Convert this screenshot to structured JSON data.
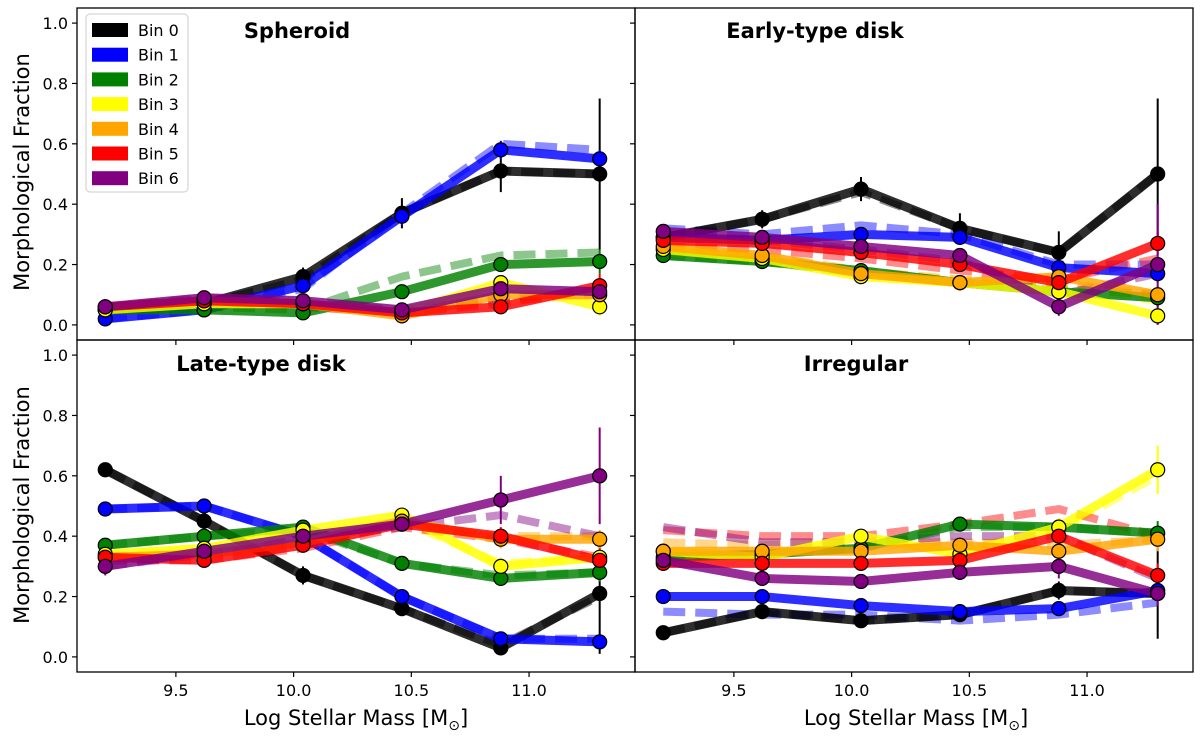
{
  "figure": {
    "ylabel": "Morphological Fraction",
    "xlabel": "Log Stellar Mass [M",
    "xlabel_sub": "⊙",
    "xlabel_end": "]"
  },
  "legend": {
    "location": "upper-left of top-left panel",
    "entries": [
      {
        "label": "Bin 0",
        "color": "#000000"
      },
      {
        "label": "Bin 1",
        "color": "#0000ff"
      },
      {
        "label": "Bin 2",
        "color": "#008000"
      },
      {
        "label": "Bin 3",
        "color": "#ffff00"
      },
      {
        "label": "Bin 4",
        "color": "#ffa500"
      },
      {
        "label": "Bin 5",
        "color": "#ff0000"
      },
      {
        "label": "Bin 6",
        "color": "#800080"
      }
    ]
  },
  "chart_data": [
    {
      "type": "line",
      "title": "Spheroid",
      "xlabel": "Log Stellar Mass [M⊙]",
      "ylabel": "Morphological Fraction",
      "xlim": [
        9.08,
        11.45
      ],
      "ylim": [
        -0.05,
        1.05
      ],
      "xticks": [
        9.5,
        10.0,
        10.5,
        11.0
      ],
      "xtick_labels": [
        "9.5",
        "10.0",
        "10.5",
        "11.0"
      ],
      "yticks": [
        0.0,
        0.2,
        0.4,
        0.6,
        0.8,
        1.0
      ],
      "ytick_labels": [
        "0.0",
        "0.2",
        "0.4",
        "0.6",
        "0.8",
        "1.0"
      ],
      "x": [
        9.2,
        9.62,
        10.04,
        10.46,
        10.88,
        11.3
      ],
      "series": [
        {
          "name": "Bin 0",
          "color": "#000000",
          "values": [
            0.05,
            0.07,
            0.16,
            0.37,
            0.51,
            0.5
          ],
          "model": [
            0.05,
            0.07,
            0.15,
            0.37,
            0.51,
            0.5
          ],
          "err": [
            0.01,
            0.01,
            0.03,
            0.05,
            0.07,
            0.25
          ]
        },
        {
          "name": "Bin 1",
          "color": "#0000ff",
          "values": [
            0.02,
            0.05,
            0.13,
            0.36,
            0.58,
            0.55
          ],
          "model": [
            0.02,
            0.05,
            0.12,
            0.37,
            0.6,
            0.58
          ],
          "err": [
            0.01,
            0.01,
            0.02,
            0.03,
            0.03,
            0.03
          ]
        },
        {
          "name": "Bin 2",
          "color": "#008000",
          "values": [
            0.05,
            0.05,
            0.04,
            0.11,
            0.2,
            0.21
          ],
          "model": [
            0.05,
            0.06,
            0.05,
            0.16,
            0.23,
            0.24
          ],
          "err": [
            0.01,
            0.01,
            0.01,
            0.02,
            0.02,
            0.04
          ]
        },
        {
          "name": "Bin 3",
          "color": "#ffff00",
          "values": [
            0.05,
            0.07,
            0.07,
            0.04,
            0.14,
            0.06
          ],
          "model": [
            0.05,
            0.07,
            0.06,
            0.05,
            0.1,
            0.1
          ],
          "err": [
            0.01,
            0.01,
            0.01,
            0.01,
            0.02,
            0.03
          ]
        },
        {
          "name": "Bin 4",
          "color": "#ffa500",
          "values": [
            0.06,
            0.08,
            0.07,
            0.03,
            0.1,
            0.1
          ],
          "model": [
            0.06,
            0.08,
            0.06,
            0.04,
            0.08,
            0.1
          ],
          "err": [
            0.01,
            0.01,
            0.01,
            0.01,
            0.02,
            0.03
          ]
        },
        {
          "name": "Bin 5",
          "color": "#ff0000",
          "values": [
            0.06,
            0.08,
            0.07,
            0.04,
            0.06,
            0.13
          ],
          "model": [
            0.06,
            0.08,
            0.06,
            0.04,
            0.07,
            0.12
          ],
          "err": [
            0.01,
            0.01,
            0.01,
            0.01,
            0.02,
            0.04
          ]
        },
        {
          "name": "Bin 6",
          "color": "#800080",
          "values": [
            0.06,
            0.09,
            0.08,
            0.05,
            0.12,
            0.11
          ],
          "model": [
            0.06,
            0.09,
            0.07,
            0.05,
            0.09,
            0.11
          ],
          "err": [
            0.01,
            0.01,
            0.01,
            0.01,
            0.03,
            0.04
          ]
        }
      ]
    },
    {
      "type": "line",
      "title": "Early-type disk",
      "xlabel": "Log Stellar Mass [M⊙]",
      "ylabel": "",
      "xlim": [
        9.08,
        11.45
      ],
      "ylim": [
        -0.05,
        1.05
      ],
      "xticks": [
        9.5,
        10.0,
        10.5,
        11.0
      ],
      "xtick_labels": [
        "9.5",
        "10.0",
        "10.5",
        "11.0"
      ],
      "yticks": [
        0.0,
        0.2,
        0.4,
        0.6,
        0.8,
        1.0
      ],
      "ytick_labels": [
        "",
        "",
        "",
        "",
        "",
        ""
      ],
      "x": [
        9.2,
        9.62,
        10.04,
        10.46,
        10.88,
        11.3
      ],
      "series": [
        {
          "name": "Bin 0",
          "color": "#000000",
          "values": [
            0.29,
            0.35,
            0.45,
            0.32,
            0.24,
            0.5
          ],
          "model": [
            0.29,
            0.35,
            0.44,
            0.32,
            0.24,
            0.5
          ],
          "err": [
            0.02,
            0.03,
            0.04,
            0.05,
            0.07,
            0.25
          ]
        },
        {
          "name": "Bin 1",
          "color": "#0000ff",
          "values": [
            0.29,
            0.28,
            0.3,
            0.29,
            0.19,
            0.17
          ],
          "model": [
            0.32,
            0.3,
            0.33,
            0.3,
            0.2,
            0.2
          ],
          "err": [
            0.01,
            0.01,
            0.02,
            0.02,
            0.02,
            0.03
          ]
        },
        {
          "name": "Bin 2",
          "color": "#008000",
          "values": [
            0.23,
            0.21,
            0.18,
            0.14,
            0.11,
            0.09
          ],
          "model": [
            0.23,
            0.21,
            0.17,
            0.14,
            0.12,
            0.1
          ],
          "err": [
            0.01,
            0.01,
            0.01,
            0.02,
            0.02,
            0.03
          ]
        },
        {
          "name": "Bin 3",
          "color": "#ffff00",
          "values": [
            0.25,
            0.22,
            0.16,
            0.14,
            0.11,
            0.03
          ],
          "model": [
            0.24,
            0.22,
            0.17,
            0.15,
            0.13,
            0.08
          ],
          "err": [
            0.01,
            0.01,
            0.01,
            0.01,
            0.02,
            0.03
          ]
        },
        {
          "name": "Bin 4",
          "color": "#ffa500",
          "values": [
            0.26,
            0.23,
            0.17,
            0.14,
            0.16,
            0.1
          ],
          "model": [
            0.25,
            0.23,
            0.18,
            0.15,
            0.14,
            0.1
          ],
          "err": [
            0.01,
            0.01,
            0.01,
            0.01,
            0.02,
            0.03
          ]
        },
        {
          "name": "Bin 5",
          "color": "#ff0000",
          "values": [
            0.28,
            0.27,
            0.24,
            0.2,
            0.14,
            0.27
          ],
          "model": [
            0.26,
            0.25,
            0.22,
            0.18,
            0.15,
            0.22
          ],
          "err": [
            0.01,
            0.01,
            0.01,
            0.02,
            0.02,
            0.04
          ]
        },
        {
          "name": "Bin 6",
          "color": "#800080",
          "values": [
            0.31,
            0.29,
            0.26,
            0.23,
            0.06,
            0.2
          ],
          "model": [
            0.3,
            0.28,
            0.25,
            0.21,
            0.1,
            0.17
          ],
          "err": [
            0.02,
            0.02,
            0.02,
            0.02,
            0.03,
            0.2
          ]
        }
      ]
    },
    {
      "type": "line",
      "title": "Late-type disk",
      "xlabel": "Log Stellar Mass [M⊙]",
      "ylabel": "Morphological Fraction",
      "xlim": [
        9.08,
        11.45
      ],
      "ylim": [
        -0.05,
        1.05
      ],
      "xticks": [
        9.5,
        10.0,
        10.5,
        11.0
      ],
      "xtick_labels": [
        "9.5",
        "10.0",
        "10.5",
        "11.0"
      ],
      "yticks": [
        0.0,
        0.2,
        0.4,
        0.6,
        0.8,
        1.0
      ],
      "ytick_labels": [
        "0.0",
        "0.2",
        "0.4",
        "0.6",
        "0.8",
        "1.0"
      ],
      "x": [
        9.2,
        9.62,
        10.04,
        10.46,
        10.88,
        11.3
      ],
      "series": [
        {
          "name": "Bin 0",
          "color": "#000000",
          "values": [
            0.62,
            0.45,
            0.27,
            0.16,
            0.03,
            0.21
          ],
          "model": [
            0.62,
            0.45,
            0.27,
            0.16,
            0.04,
            0.2
          ],
          "err": [
            0.02,
            0.03,
            0.03,
            0.02,
            0.02,
            0.2
          ]
        },
        {
          "name": "Bin 1",
          "color": "#0000ff",
          "values": [
            0.49,
            0.5,
            0.4,
            0.2,
            0.06,
            0.05
          ],
          "model": [
            0.49,
            0.5,
            0.4,
            0.2,
            0.06,
            0.06
          ],
          "err": [
            0.01,
            0.01,
            0.02,
            0.02,
            0.01,
            0.01
          ]
        },
        {
          "name": "Bin 2",
          "color": "#008000",
          "values": [
            0.37,
            0.4,
            0.43,
            0.31,
            0.26,
            0.28
          ],
          "model": [
            0.37,
            0.4,
            0.42,
            0.31,
            0.27,
            0.28
          ],
          "err": [
            0.01,
            0.01,
            0.02,
            0.02,
            0.02,
            0.03
          ]
        },
        {
          "name": "Bin 3",
          "color": "#ffff00",
          "values": [
            0.34,
            0.36,
            0.42,
            0.47,
            0.3,
            0.33
          ],
          "model": [
            0.34,
            0.36,
            0.41,
            0.45,
            0.31,
            0.33
          ],
          "err": [
            0.01,
            0.01,
            0.02,
            0.02,
            0.03,
            0.03
          ]
        },
        {
          "name": "Bin 4",
          "color": "#ffa500",
          "values": [
            0.33,
            0.34,
            0.38,
            0.45,
            0.39,
            0.39
          ],
          "model": [
            0.33,
            0.34,
            0.38,
            0.44,
            0.4,
            0.4
          ],
          "err": [
            0.01,
            0.01,
            0.02,
            0.02,
            0.03,
            0.03
          ]
        },
        {
          "name": "Bin 5",
          "color": "#ff0000",
          "values": [
            0.33,
            0.32,
            0.37,
            0.44,
            0.4,
            0.32
          ],
          "model": [
            0.32,
            0.32,
            0.36,
            0.43,
            0.39,
            0.33
          ],
          "err": [
            0.01,
            0.01,
            0.02,
            0.02,
            0.03,
            0.04
          ]
        },
        {
          "name": "Bin 6",
          "color": "#800080",
          "values": [
            0.3,
            0.35,
            0.4,
            0.44,
            0.52,
            0.6
          ],
          "model": [
            0.3,
            0.34,
            0.39,
            0.43,
            0.47,
            0.4
          ],
          "err": [
            0.03,
            0.02,
            0.02,
            0.02,
            0.08,
            0.16
          ]
        }
      ]
    },
    {
      "type": "line",
      "title": "Irregular",
      "xlabel": "Log Stellar Mass [M⊙]",
      "ylabel": "",
      "xlim": [
        9.08,
        11.45
      ],
      "ylim": [
        -0.05,
        1.05
      ],
      "xticks": [
        9.5,
        10.0,
        10.5,
        11.0
      ],
      "xtick_labels": [
        "9.5",
        "10.0",
        "10.5",
        "11.0"
      ],
      "yticks": [
        0.0,
        0.2,
        0.4,
        0.6,
        0.8,
        1.0
      ],
      "ytick_labels": [
        "",
        "",
        "",
        "",
        "",
        ""
      ],
      "x": [
        9.2,
        9.62,
        10.04,
        10.46,
        10.88,
        11.3
      ],
      "series": [
        {
          "name": "Bin 0",
          "color": "#000000",
          "values": [
            0.08,
            0.15,
            0.12,
            0.14,
            0.22,
            0.21
          ],
          "model": [
            0.08,
            0.15,
            0.12,
            0.14,
            0.22,
            0.21
          ],
          "err": [
            0.01,
            0.01,
            0.02,
            0.02,
            0.03,
            0.15
          ]
        },
        {
          "name": "Bin 1",
          "color": "#0000ff",
          "values": [
            0.2,
            0.2,
            0.17,
            0.15,
            0.16,
            0.22
          ],
          "model": [
            0.15,
            0.14,
            0.14,
            0.12,
            0.14,
            0.18
          ],
          "err": [
            0.01,
            0.01,
            0.01,
            0.01,
            0.02,
            0.03
          ]
        },
        {
          "name": "Bin 2",
          "color": "#008000",
          "values": [
            0.33,
            0.34,
            0.36,
            0.44,
            0.43,
            0.41
          ],
          "model": [
            0.33,
            0.34,
            0.36,
            0.43,
            0.43,
            0.41
          ],
          "err": [
            0.01,
            0.01,
            0.02,
            0.02,
            0.02,
            0.04
          ]
        },
        {
          "name": "Bin 3",
          "color": "#ffff00",
          "values": [
            0.35,
            0.33,
            0.4,
            0.34,
            0.43,
            0.62
          ],
          "model": [
            0.35,
            0.34,
            0.38,
            0.36,
            0.42,
            0.6
          ],
          "err": [
            0.01,
            0.01,
            0.02,
            0.02,
            0.03,
            0.08
          ]
        },
        {
          "name": "Bin 4",
          "color": "#ffa500",
          "values": [
            0.35,
            0.35,
            0.35,
            0.37,
            0.35,
            0.39
          ],
          "model": [
            0.38,
            0.37,
            0.38,
            0.38,
            0.37,
            0.39
          ],
          "err": [
            0.01,
            0.01,
            0.02,
            0.02,
            0.03,
            0.04
          ]
        },
        {
          "name": "Bin 5",
          "color": "#ff0000",
          "values": [
            0.31,
            0.31,
            0.31,
            0.32,
            0.4,
            0.27
          ],
          "model": [
            0.42,
            0.4,
            0.4,
            0.44,
            0.49,
            0.4
          ],
          "err": [
            0.01,
            0.01,
            0.02,
            0.02,
            0.03,
            0.04
          ]
        },
        {
          "name": "Bin 6",
          "color": "#800080",
          "values": [
            0.32,
            0.26,
            0.25,
            0.28,
            0.3,
            0.21
          ],
          "model": [
            0.43,
            0.38,
            0.38,
            0.4,
            0.4,
            0.26
          ],
          "err": [
            0.02,
            0.02,
            0.02,
            0.02,
            0.04,
            0.04
          ]
        }
      ]
    }
  ]
}
